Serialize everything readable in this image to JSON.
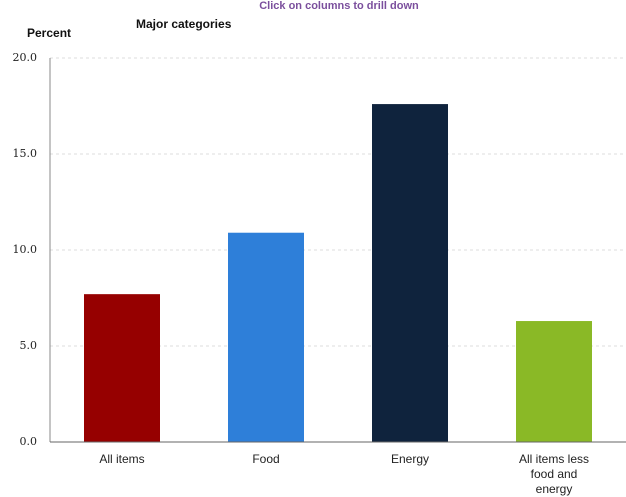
{
  "chart_data": {
    "type": "bar",
    "subtitle": "Click on columns to drill down",
    "title": "Major categories",
    "y_label": "Percent",
    "categories": [
      "All items",
      "Food",
      "Energy",
      "All items less food and energy"
    ],
    "values": [
      7.7,
      10.9,
      17.6,
      6.3
    ],
    "colors": [
      "#960000",
      "#2e7fd9",
      "#0f233d",
      "#8ab926"
    ],
    "ylim": [
      0,
      20
    ],
    "yticks": [
      {
        "value": 0,
        "label": "0.0"
      },
      {
        "value": 5,
        "label": "5.0"
      },
      {
        "value": 10,
        "label": "10.0"
      },
      {
        "value": 15,
        "label": "15.0"
      },
      {
        "value": 20,
        "label": "20.0"
      }
    ],
    "grid": true
  }
}
